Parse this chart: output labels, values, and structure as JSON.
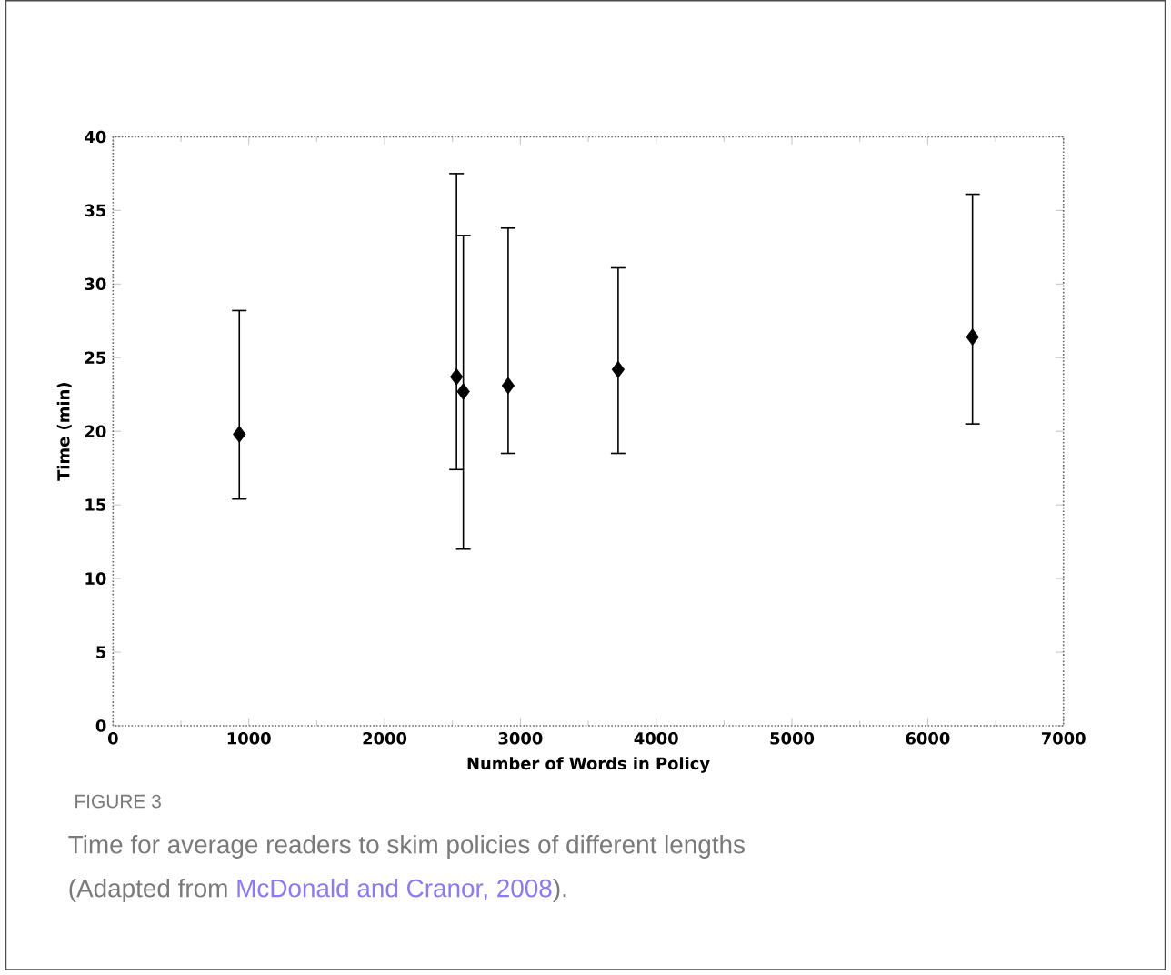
{
  "chart_data": {
    "type": "scatter",
    "xlabel": "Number of Words in Policy",
    "ylabel": "Time (min)",
    "x": [
      930,
      2530,
      2580,
      2910,
      3720,
      6330
    ],
    "series": [
      {
        "color": "#000000",
        "values": [
          19.8,
          23.7,
          22.7,
          23.1,
          24.2,
          26.4
        ],
        "errors": [
          [
            15.4,
            28.2
          ],
          [
            17.4,
            37.5
          ],
          [
            12.0,
            33.3
          ],
          [
            18.5,
            33.8
          ],
          [
            18.5,
            31.1
          ],
          [
            20.5,
            36.1
          ]
        ]
      }
    ],
    "xlim": [
      0,
      7000
    ],
    "xticks": [
      0,
      1000,
      2000,
      3000,
      4000,
      5000,
      6000,
      7000
    ],
    "ylim": [
      0,
      40
    ],
    "yticks": [
      0,
      5,
      10,
      15,
      20,
      25,
      30,
      35,
      40
    ],
    "marker": "diamond",
    "grid": false,
    "annotations": [
      "FIGURE 3",
      "Time for average readers to skim policies of different lengths",
      "(Adapted from ",
      "McDonald and Cranor, 2008",
      ")."
    ]
  }
}
